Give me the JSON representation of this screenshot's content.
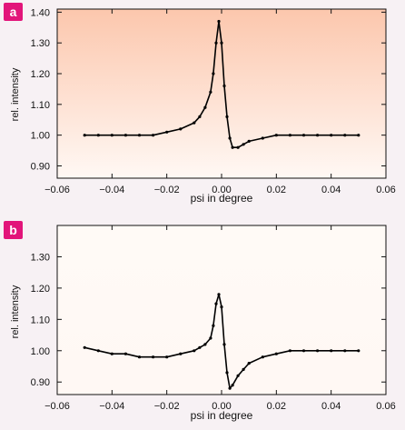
{
  "panels": [
    {
      "tag": "a"
    },
    {
      "tag": "b"
    }
  ],
  "colors": {
    "tag_bg": "#e2157a",
    "gradient_top_a": "#fcc7ad",
    "gradient_bottom": "#fff8f4",
    "gradient_top_b": "#fffaf6",
    "line": "#000000"
  },
  "chart_data": [
    {
      "type": "line",
      "xlabel": "psi in degree",
      "ylabel": "rel. intensity",
      "xlim": [
        -0.06,
        0.06
      ],
      "ylim": [
        0.86,
        1.41
      ],
      "xticks": [
        -0.06,
        -0.04,
        -0.02,
        0.0,
        0.02,
        0.04,
        0.06
      ],
      "xticklabels": [
        "−0.06",
        "−0.04",
        "−0.02",
        "0.00",
        "0.02",
        "0.04",
        "0.06"
      ],
      "yticks": [
        0.9,
        1.0,
        1.1,
        1.2,
        1.3,
        1.4
      ],
      "yticklabels": [
        "0.90",
        "1.00",
        "1.10",
        "1.20",
        "1.30",
        "1.40"
      ],
      "grid": false,
      "series": [
        {
          "x": [
            -0.05,
            -0.045,
            -0.04,
            -0.035,
            -0.03,
            -0.025,
            -0.02,
            -0.015,
            -0.01,
            -0.008,
            -0.006,
            -0.004,
            -0.003,
            -0.002,
            -0.001,
            0.0,
            0.001,
            0.002,
            0.003,
            0.004,
            0.006,
            0.008,
            0.01,
            0.015,
            0.02,
            0.025,
            0.03,
            0.035,
            0.04,
            0.045,
            0.05
          ],
          "y": [
            1.0,
            1.0,
            1.0,
            1.0,
            1.0,
            1.0,
            1.01,
            1.02,
            1.04,
            1.06,
            1.09,
            1.14,
            1.2,
            1.3,
            1.37,
            1.3,
            1.16,
            1.06,
            0.99,
            0.96,
            0.96,
            0.97,
            0.98,
            0.99,
            1.0,
            1.0,
            1.0,
            1.0,
            1.0,
            1.0,
            1.0
          ]
        }
      ]
    },
    {
      "type": "line",
      "xlabel": "psi in degree",
      "ylabel": "rel. intensity",
      "xlim": [
        -0.06,
        0.06
      ],
      "ylim": [
        0.86,
        1.4
      ],
      "xticks": [
        -0.06,
        -0.04,
        -0.02,
        0.0,
        0.02,
        0.04,
        0.06
      ],
      "xticklabels": [
        "−0.06",
        "−0.04",
        "−0.02",
        "0.00",
        "0.02",
        "0.04",
        "0.06"
      ],
      "yticks": [
        0.9,
        1.0,
        1.1,
        1.2,
        1.3
      ],
      "yticklabels": [
        "0.90",
        "1.00",
        "1.10",
        "1.20",
        "1.30"
      ],
      "grid": false,
      "series": [
        {
          "x": [
            -0.05,
            -0.045,
            -0.04,
            -0.035,
            -0.03,
            -0.025,
            -0.02,
            -0.015,
            -0.01,
            -0.008,
            -0.006,
            -0.004,
            -0.003,
            -0.002,
            -0.001,
            0.0,
            0.001,
            0.002,
            0.003,
            0.004,
            0.006,
            0.008,
            0.01,
            0.015,
            0.02,
            0.025,
            0.03,
            0.035,
            0.04,
            0.045,
            0.05
          ],
          "y": [
            1.01,
            1.0,
            0.99,
            0.99,
            0.98,
            0.98,
            0.98,
            0.99,
            1.0,
            1.01,
            1.02,
            1.04,
            1.08,
            1.15,
            1.18,
            1.14,
            1.02,
            0.93,
            0.88,
            0.89,
            0.92,
            0.94,
            0.96,
            0.98,
            0.99,
            1.0,
            1.0,
            1.0,
            1.0,
            1.0,
            1.0
          ]
        }
      ]
    }
  ]
}
